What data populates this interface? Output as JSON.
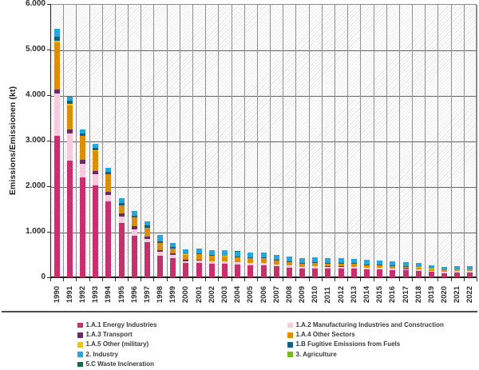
{
  "chart_data": {
    "type": "bar",
    "stacked": true,
    "title": "",
    "ylabel": "Emissions/Emissionen (kt)",
    "xlabel": "",
    "ylim": [
      0,
      6000
    ],
    "y_tick_labels": [
      "6.000",
      "5.000",
      "4.000",
      "3.000",
      "2.000",
      "1.000",
      "0"
    ],
    "grid": true,
    "legend_position": "bottom",
    "categories": [
      "1990",
      "1991",
      "1992",
      "1993",
      "1994",
      "1995",
      "1996",
      "1997",
      "1998",
      "1999",
      "2000",
      "2001",
      "2002",
      "2003",
      "2004",
      "2005",
      "2006",
      "2007",
      "2008",
      "2009",
      "2010",
      "2011",
      "2012",
      "2013",
      "2014",
      "2015",
      "2016",
      "2017",
      "2018",
      "2019",
      "2020",
      "2021",
      "2022"
    ],
    "series": [
      {
        "name": "1.A.1 Energy Industries",
        "color": "#C72F6D",
        "values": [
          3100,
          2570,
          2190,
          2010,
          1660,
          1200,
          910,
          770,
          480,
          420,
          310,
          320,
          300,
          295,
          280,
          270,
          270,
          240,
          215,
          195,
          200,
          195,
          195,
          190,
          175,
          175,
          165,
          150,
          145,
          115,
          95,
          105,
          110
        ]
      },
      {
        "name": "1.A.2 Manufacturing Industries and Construction",
        "color": "#F7CBDE",
        "values": [
          930,
          580,
          300,
          260,
          140,
          130,
          140,
          80,
          85,
          65,
          50,
          50,
          50,
          50,
          50,
          45,
          45,
          45,
          45,
          35,
          40,
          40,
          40,
          40,
          35,
          35,
          32,
          32,
          30,
          28,
          25,
          27,
          27
        ]
      },
      {
        "name": "1.A.3 Transport",
        "color": "#682B65",
        "values": [
          90,
          90,
          90,
          70,
          70,
          70,
          70,
          50,
          40,
          40,
          25,
          15,
          10,
          5,
          4,
          4,
          4,
          4,
          3,
          3,
          3,
          3,
          3,
          3,
          3,
          3,
          3,
          3,
          3,
          2,
          2,
          2,
          2
        ]
      },
      {
        "name": "1.A.4 Other Sectors",
        "color": "#DB8F08",
        "values": [
          1030,
          540,
          520,
          440,
          390,
          180,
          190,
          190,
          150,
          110,
          115,
          120,
          110,
          115,
          105,
          100,
          100,
          75,
          75,
          70,
          70,
          65,
          65,
          65,
          55,
          55,
          50,
          48,
          42,
          38,
          35,
          37,
          35
        ]
      },
      {
        "name": "1.A.5 Other (military)",
        "color": "#F2C50C",
        "values": [
          50,
          20,
          10,
          8,
          6,
          5,
          4,
          4,
          3,
          3,
          3,
          3,
          3,
          3,
          3,
          3,
          3,
          3,
          3,
          3,
          3,
          3,
          3,
          3,
          3,
          3,
          3,
          3,
          3,
          2,
          2,
          2,
          2
        ]
      },
      {
        "name": "1.B Fugitive Emissions from Fuels",
        "color": "#15607E",
        "values": [
          90,
          70,
          50,
          50,
          50,
          50,
          45,
          40,
          35,
          30,
          15,
          15,
          15,
          15,
          15,
          15,
          15,
          15,
          15,
          12,
          12,
          12,
          12,
          12,
          10,
          10,
          10,
          10,
          9,
          8,
          7,
          8,
          8
        ]
      },
      {
        "name": "2. Industry",
        "color": "#29A5D9",
        "values": [
          160,
          90,
          90,
          90,
          90,
          100,
          90,
          95,
          140,
          90,
          100,
          105,
          110,
          105,
          110,
          110,
          105,
          110,
          95,
          105,
          105,
          105,
          100,
          95,
          97,
          92,
          85,
          82,
          81,
          70,
          62,
          62,
          64
        ]
      },
      {
        "name": "3. Agriculture",
        "color": "#76B82A",
        "values": [
          2,
          2,
          2,
          2,
          2,
          2,
          2,
          2,
          2,
          2,
          2,
          2,
          2,
          2,
          2,
          2,
          2,
          2,
          2,
          2,
          2,
          2,
          2,
          2,
          2,
          2,
          2,
          2,
          2,
          2,
          2,
          2,
          2
        ]
      },
      {
        "name": "5.C Waste Incineration",
        "color": "#0A7154",
        "values": [
          3,
          3,
          3,
          3,
          3,
          3,
          3,
          3,
          3,
          3,
          3,
          3,
          3,
          3,
          3,
          3,
          3,
          3,
          3,
          3,
          3,
          3,
          3,
          3,
          3,
          3,
          3,
          3,
          3,
          3,
          3,
          3,
          3
        ]
      }
    ]
  }
}
